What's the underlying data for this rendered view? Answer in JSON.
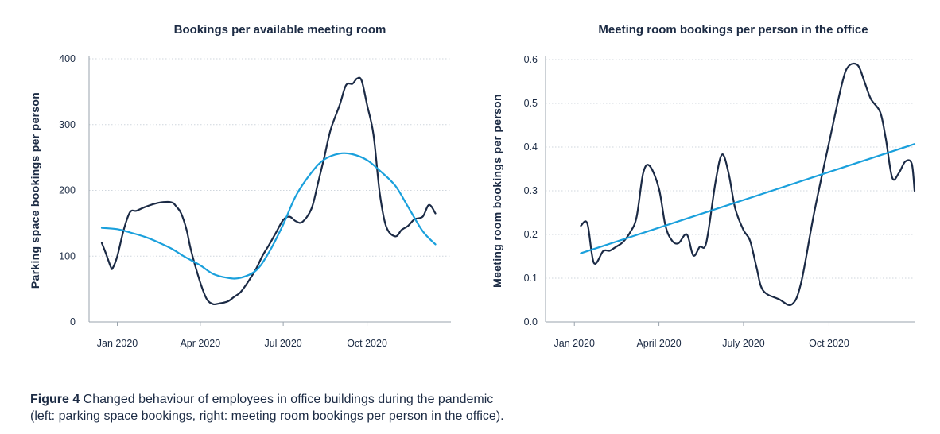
{
  "caption": {
    "label": "Figure 4",
    "line1": " Changed behaviour of employees in office buildings during the pandemic",
    "line2": "(left: parking space bookings, right: meeting room bookings per person in the office)."
  },
  "colors": {
    "dark_series": "#1b2a45",
    "light_series": "#1aa0dc",
    "axis": "#9aa3ad",
    "grid": "#cfd6dd"
  },
  "chart_data": [
    {
      "type": "line",
      "title": "Bookings per available meeting room",
      "xlabel": "",
      "ylabel": "Parking space bookings per person",
      "x_ticks": [
        {
          "label": "Jan 2020",
          "date": "2020-01-01"
        },
        {
          "label": "Apr 2020",
          "date": "2020-04-01"
        },
        {
          "label": "Jul 2020",
          "date": "2020-07-01"
        },
        {
          "label": "Oct 2020",
          "date": "2020-10-01"
        }
      ],
      "xlim": [
        "2019-12-01",
        "2021-01-01"
      ],
      "ylim": [
        0,
        400
      ],
      "y_ticks": [
        0,
        100,
        200,
        300,
        400
      ],
      "grid": "horizontal-dotted",
      "series": [
        {
          "color": "dark",
          "points": [
            [
              "2019-12-15",
              120
            ],
            [
              "2019-12-20",
              102
            ],
            [
              "2019-12-25",
              83
            ],
            [
              "2019-12-27",
              82
            ],
            [
              "2020-01-01",
              100
            ],
            [
              "2020-01-08",
              140
            ],
            [
              "2020-01-15",
              167
            ],
            [
              "2020-01-22",
              169
            ],
            [
              "2020-02-01",
              175
            ],
            [
              "2020-02-15",
              181
            ],
            [
              "2020-02-29",
              182
            ],
            [
              "2020-03-06",
              175
            ],
            [
              "2020-03-11",
              165
            ],
            [
              "2020-03-17",
              140
            ],
            [
              "2020-03-22",
              108
            ],
            [
              "2020-04-01",
              60
            ],
            [
              "2020-04-08",
              35
            ],
            [
              "2020-04-15",
              27
            ],
            [
              "2020-04-22",
              28
            ],
            [
              "2020-05-01",
              31
            ],
            [
              "2020-05-08",
              38
            ],
            [
              "2020-05-15",
              45
            ],
            [
              "2020-05-22",
              58
            ],
            [
              "2020-06-01",
              80
            ],
            [
              "2020-06-08",
              100
            ],
            [
              "2020-06-15",
              116
            ],
            [
              "2020-06-22",
              133
            ],
            [
              "2020-07-01",
              155
            ],
            [
              "2020-07-08",
              160
            ],
            [
              "2020-07-15",
              153
            ],
            [
              "2020-07-22",
              152
            ],
            [
              "2020-08-01",
              172
            ],
            [
              "2020-08-08",
              210
            ],
            [
              "2020-08-15",
              250
            ],
            [
              "2020-08-22",
              292
            ],
            [
              "2020-09-01",
              330
            ],
            [
              "2020-09-08",
              360
            ],
            [
              "2020-09-15",
              362
            ],
            [
              "2020-09-20",
              370
            ],
            [
              "2020-09-25",
              367
            ],
            [
              "2020-10-01",
              330
            ],
            [
              "2020-10-08",
              285
            ],
            [
              "2020-10-15",
              195
            ],
            [
              "2020-10-22",
              145
            ],
            [
              "2020-11-01",
              130
            ],
            [
              "2020-11-08",
              140
            ],
            [
              "2020-11-15",
              146
            ],
            [
              "2020-11-22",
              156
            ],
            [
              "2020-12-01",
              160
            ],
            [
              "2020-12-08",
              178
            ],
            [
              "2020-12-15",
              165
            ]
          ]
        },
        {
          "color": "light",
          "points": [
            [
              "2019-12-15",
              143
            ],
            [
              "2020-01-01",
              141
            ],
            [
              "2020-01-15",
              136
            ],
            [
              "2020-02-01",
              129
            ],
            [
              "2020-02-15",
              121
            ],
            [
              "2020-03-01",
              111
            ],
            [
              "2020-03-15",
              99
            ],
            [
              "2020-04-01",
              86
            ],
            [
              "2020-04-15",
              73
            ],
            [
              "2020-05-01",
              67
            ],
            [
              "2020-05-15",
              67
            ],
            [
              "2020-06-01",
              78
            ],
            [
              "2020-06-15",
              105
            ],
            [
              "2020-07-01",
              148
            ],
            [
              "2020-07-15",
              192
            ],
            [
              "2020-08-01",
              227
            ],
            [
              "2020-08-15",
              247
            ],
            [
              "2020-09-01",
              256
            ],
            [
              "2020-09-15",
              255
            ],
            [
              "2020-10-01",
              246
            ],
            [
              "2020-10-15",
              230
            ],
            [
              "2020-11-01",
              207
            ],
            [
              "2020-11-15",
              175
            ],
            [
              "2020-12-01",
              138
            ],
            [
              "2020-12-15",
              118
            ]
          ]
        }
      ]
    },
    {
      "type": "line",
      "title": "Meeting room bookings per person in the office",
      "xlabel": "",
      "ylabel": "Meeting room bookings per person",
      "x_ticks": [
        {
          "label": "Jan 2020",
          "date": "2020-01-01"
        },
        {
          "label": "April 2020",
          "date": "2020-04-01"
        },
        {
          "label": "July 2020",
          "date": "2020-07-01"
        },
        {
          "label": "Oct 2020",
          "date": "2020-10-01"
        }
      ],
      "xlim": [
        "2019-12-01",
        "2021-01-01"
      ],
      "ylim": [
        0,
        0.6
      ],
      "y_ticks": [
        0.0,
        0.1,
        0.2,
        0.3,
        0.4,
        0.5,
        0.6
      ],
      "y_tick_labels": [
        "0.0",
        "0.1",
        "0.2",
        "0.3",
        "0.4",
        "0.5",
        "0.6"
      ],
      "grid": "horizontal-dotted",
      "series": [
        {
          "color": "dark",
          "points": [
            [
              "2020-01-08",
              0.22
            ],
            [
              "2020-01-15",
              0.225
            ],
            [
              "2020-01-22",
              0.135
            ],
            [
              "2020-02-01",
              0.162
            ],
            [
              "2020-02-08",
              0.163
            ],
            [
              "2020-02-15",
              0.172
            ],
            [
              "2020-02-22",
              0.182
            ],
            [
              "2020-03-01",
              0.205
            ],
            [
              "2020-03-08",
              0.24
            ],
            [
              "2020-03-15",
              0.34
            ],
            [
              "2020-03-22",
              0.357
            ],
            [
              "2020-04-01",
              0.305
            ],
            [
              "2020-04-08",
              0.22
            ],
            [
              "2020-04-15",
              0.186
            ],
            [
              "2020-04-22",
              0.18
            ],
            [
              "2020-05-01",
              0.2
            ],
            [
              "2020-05-08",
              0.152
            ],
            [
              "2020-05-15",
              0.172
            ],
            [
              "2020-05-22",
              0.182
            ],
            [
              "2020-06-01",
              0.322
            ],
            [
              "2020-06-08",
              0.383
            ],
            [
              "2020-06-15",
              0.34
            ],
            [
              "2020-06-22",
              0.26
            ],
            [
              "2020-07-01",
              0.21
            ],
            [
              "2020-07-08",
              0.186
            ],
            [
              "2020-07-15",
              0.125
            ],
            [
              "2020-07-22",
              0.072
            ],
            [
              "2020-08-08",
              0.052
            ],
            [
              "2020-08-22",
              0.04
            ],
            [
              "2020-09-01",
              0.09
            ],
            [
              "2020-09-15",
              0.25
            ],
            [
              "2020-10-01",
              0.41
            ],
            [
              "2020-10-15",
              0.545
            ],
            [
              "2020-10-22",
              0.585
            ],
            [
              "2020-11-01",
              0.587
            ],
            [
              "2020-11-08",
              0.55
            ],
            [
              "2020-11-15",
              0.51
            ],
            [
              "2020-11-25",
              0.48
            ],
            [
              "2020-12-01",
              0.42
            ],
            [
              "2020-12-08",
              0.33
            ],
            [
              "2020-12-15",
              0.34
            ],
            [
              "2020-12-22",
              0.367
            ],
            [
              "2020-12-29",
              0.362
            ],
            [
              "2021-01-01",
              0.3
            ]
          ]
        },
        {
          "color": "light",
          "points": [
            [
              "2020-01-08",
              0.157
            ],
            [
              "2021-01-01",
              0.407
            ]
          ]
        }
      ]
    }
  ]
}
